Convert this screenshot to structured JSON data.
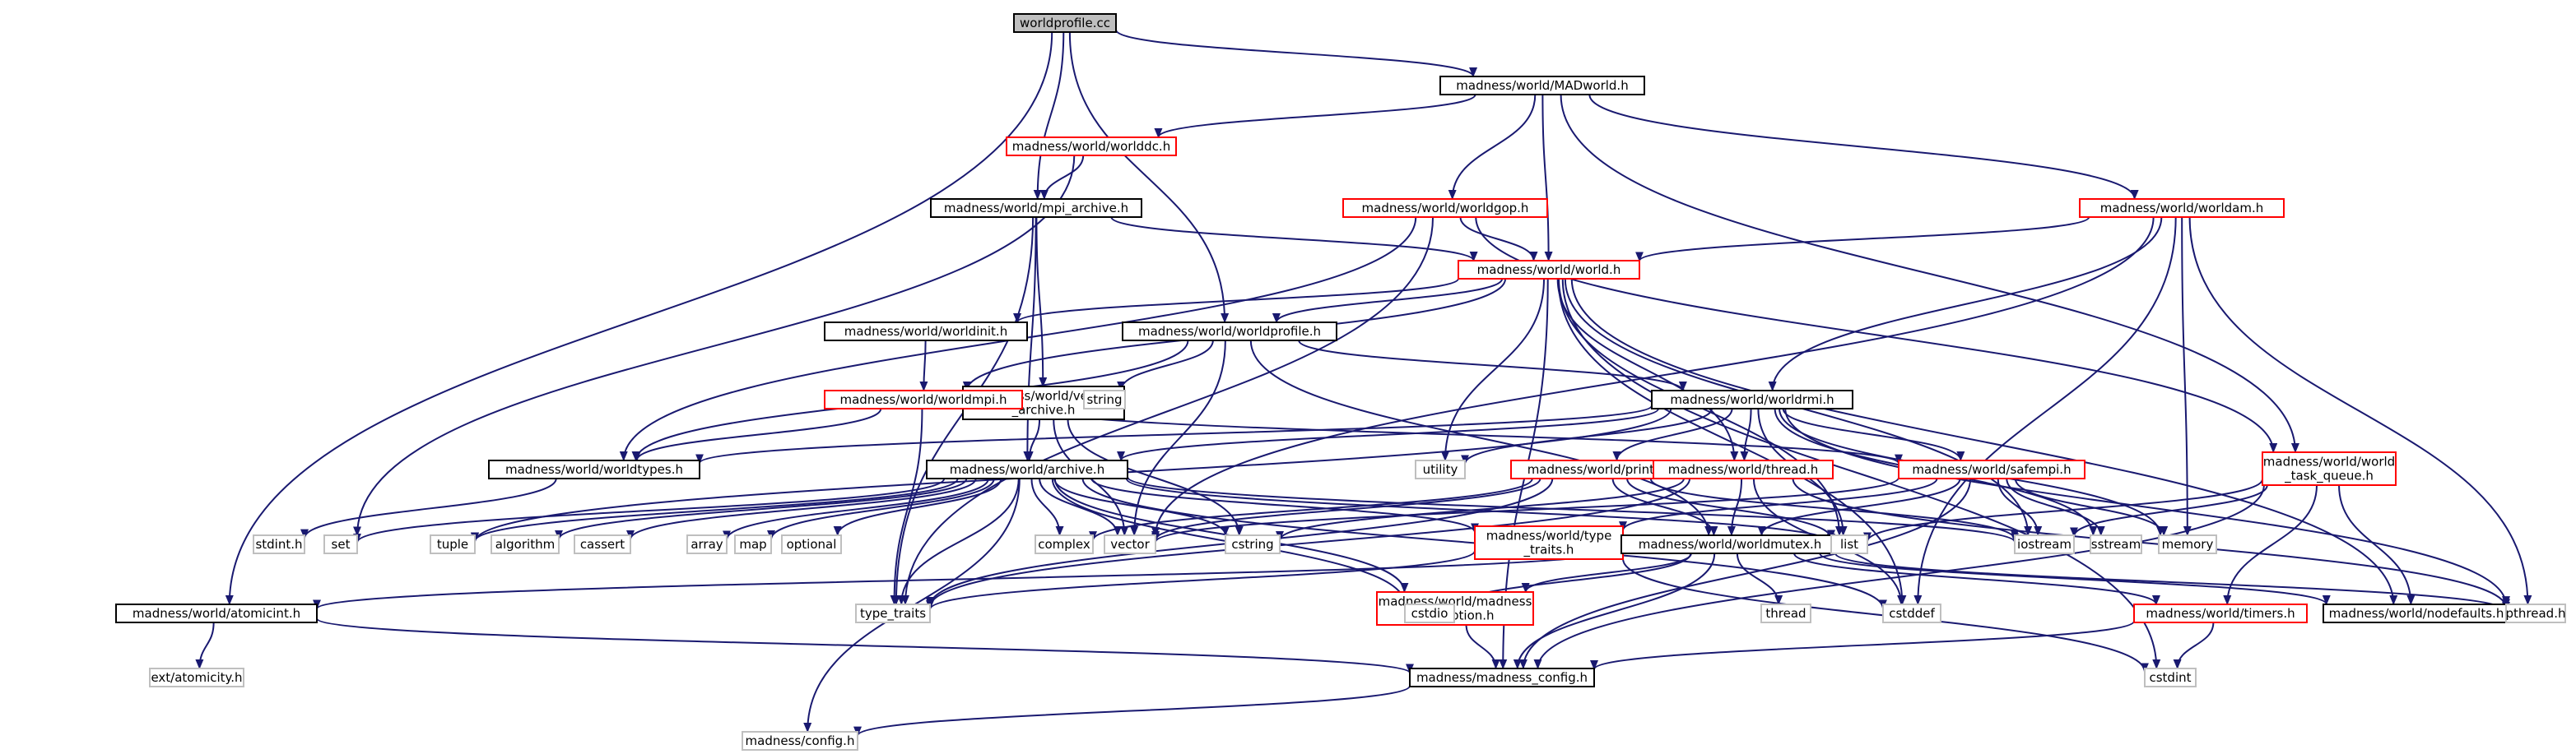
{
  "colors": {
    "edge": "#191970",
    "root_fill": "#bfbfbf",
    "node_border": "#000000",
    "linked_border": "#ff0000",
    "external_border": "#bfbfbf"
  },
  "diagram": {
    "nodes": [
      {
        "id": "root",
        "label": "worldprofile.cc",
        "kind": "root"
      },
      {
        "id": "madworld",
        "label": "madness/world/MADworld.h",
        "kind": "normal"
      },
      {
        "id": "worldddc",
        "label": "madness/world/worlddc.h",
        "kind": "red"
      },
      {
        "id": "mpiarch",
        "label": "madness/world/mpi_archive.h",
        "kind": "normal"
      },
      {
        "id": "worldgop",
        "label": "madness/world/worldgop.h",
        "kind": "red"
      },
      {
        "id": "worldam",
        "label": "madness/world/worldam.h",
        "kind": "red"
      },
      {
        "id": "world",
        "label": "madness/world/world.h",
        "kind": "red"
      },
      {
        "id": "worldinit",
        "label": "madness/world/worldinit.h",
        "kind": "normal"
      },
      {
        "id": "worldprofh",
        "label": "madness/world/worldprofile.h",
        "kind": "normal"
      },
      {
        "id": "vecarch",
        "label": [
          "madness/world/vector",
          "_archive.h"
        ],
        "kind": "normal"
      },
      {
        "id": "worldmpi",
        "label": "madness/world/worldmpi.h",
        "kind": "red"
      },
      {
        "id": "string",
        "label": "string",
        "kind": "gray"
      },
      {
        "id": "worldrmi",
        "label": "madness/world/worldrmi.h",
        "kind": "normal"
      },
      {
        "id": "worldtypes",
        "label": "madness/world/worldtypes.h",
        "kind": "normal"
      },
      {
        "id": "archive",
        "label": "madness/world/archive.h",
        "kind": "normal"
      },
      {
        "id": "utility",
        "label": "utility",
        "kind": "gray"
      },
      {
        "id": "print",
        "label": "madness/world/print.h",
        "kind": "red"
      },
      {
        "id": "thread",
        "label": "madness/world/thread.h",
        "kind": "red"
      },
      {
        "id": "safempi",
        "label": "madness/world/safempi.h",
        "kind": "red"
      },
      {
        "id": "taskq",
        "label": [
          "madness/world/world",
          "_task_queue.h"
        ],
        "kind": "red"
      },
      {
        "id": "stdint",
        "label": "stdint.h",
        "kind": "gray"
      },
      {
        "id": "set",
        "label": "set",
        "kind": "gray"
      },
      {
        "id": "tuple",
        "label": "tuple",
        "kind": "gray"
      },
      {
        "id": "algorithm",
        "label": "algorithm",
        "kind": "gray"
      },
      {
        "id": "cassert",
        "label": "cassert",
        "kind": "gray"
      },
      {
        "id": "array",
        "label": "array",
        "kind": "gray"
      },
      {
        "id": "map",
        "label": "map",
        "kind": "gray"
      },
      {
        "id": "optional",
        "label": "optional",
        "kind": "gray"
      },
      {
        "id": "complex",
        "label": "complex",
        "kind": "gray"
      },
      {
        "id": "vector",
        "label": "vector",
        "kind": "gray"
      },
      {
        "id": "cstring",
        "label": "cstring",
        "kind": "gray"
      },
      {
        "id": "typetraitsh",
        "label": [
          "madness/world/type",
          "_traits.h"
        ],
        "kind": "red"
      },
      {
        "id": "worldmutex",
        "label": "madness/world/worldmutex.h",
        "kind": "normal"
      },
      {
        "id": "list",
        "label": "list",
        "kind": "gray"
      },
      {
        "id": "iostream",
        "label": "iostream",
        "kind": "gray"
      },
      {
        "id": "sstream",
        "label": "sstream",
        "kind": "gray"
      },
      {
        "id": "memory",
        "label": "memory",
        "kind": "gray"
      },
      {
        "id": "atomicint",
        "label": "madness/world/atomicint.h",
        "kind": "normal"
      },
      {
        "id": "type_traits",
        "label": "type_traits",
        "kind": "gray"
      },
      {
        "id": "madexc",
        "label": [
          "madness/world/madness",
          "_exception.h"
        ],
        "kind": "red"
      },
      {
        "id": "cstdio",
        "label": "cstdio",
        "kind": "gray"
      },
      {
        "id": "threadstd",
        "label": "thread",
        "kind": "gray"
      },
      {
        "id": "cstddef",
        "label": "cstddef",
        "kind": "gray"
      },
      {
        "id": "timers",
        "label": "madness/world/timers.h",
        "kind": "red"
      },
      {
        "id": "nodefaults",
        "label": "madness/world/nodefaults.h",
        "kind": "normal"
      },
      {
        "id": "pthread",
        "label": "pthread.h",
        "kind": "gray"
      },
      {
        "id": "atomicity",
        "label": "ext/atomicity.h",
        "kind": "gray"
      },
      {
        "id": "madconfig",
        "label": "madness/madness_config.h",
        "kind": "normal"
      },
      {
        "id": "cstdint",
        "label": "cstdint",
        "kind": "gray"
      },
      {
        "id": "config",
        "label": "madness/config.h",
        "kind": "gray"
      }
    ],
    "edges": [
      [
        "root",
        "madworld"
      ],
      [
        "root",
        "mpiarch"
      ],
      [
        "root",
        "worldprofh"
      ],
      [
        "root",
        "atomicint"
      ],
      [
        "madworld",
        "worldddc"
      ],
      [
        "madworld",
        "worldgop"
      ],
      [
        "madworld",
        "world"
      ],
      [
        "madworld",
        "worldam"
      ],
      [
        "madworld",
        "taskq"
      ],
      [
        "worldddc",
        "mpiarch"
      ],
      [
        "worldddc",
        "set"
      ],
      [
        "mpiarch",
        "world"
      ],
      [
        "mpiarch",
        "vecarch"
      ],
      [
        "mpiarch",
        "archive"
      ],
      [
        "mpiarch",
        "type_traits"
      ],
      [
        "worldgop",
        "world"
      ],
      [
        "worldgop",
        "worldtypes"
      ],
      [
        "worldgop",
        "type_traits"
      ],
      [
        "worldgop",
        "taskq"
      ],
      [
        "worldam",
        "world"
      ],
      [
        "worldam",
        "worldrmi"
      ],
      [
        "worldam",
        "vector"
      ],
      [
        "worldam",
        "memory"
      ],
      [
        "worldam",
        "cstddef"
      ],
      [
        "worldam",
        "pthread"
      ],
      [
        "world",
        "worldinit"
      ],
      [
        "world",
        "worldprofh"
      ],
      [
        "world",
        "worldmpi"
      ],
      [
        "world",
        "utility"
      ],
      [
        "world",
        "thread"
      ],
      [
        "world",
        "list"
      ],
      [
        "world",
        "iostream"
      ],
      [
        "world",
        "cstdint"
      ],
      [
        "world",
        "madconfig"
      ],
      [
        "world",
        "nodefaults"
      ],
      [
        "world",
        "cstddef"
      ],
      [
        "worldinit",
        "worldmpi"
      ],
      [
        "worldprofh",
        "worldrmi"
      ],
      [
        "worldprofh",
        "string"
      ],
      [
        "worldprofh",
        "vector"
      ],
      [
        "worldprofh",
        "worldtypes"
      ],
      [
        "worldprofh",
        "worldmutex"
      ],
      [
        "vecarch",
        "archive"
      ],
      [
        "vecarch",
        "vector"
      ],
      [
        "vecarch",
        "cstring"
      ],
      [
        "worldmpi",
        "worldtypes"
      ],
      [
        "worldmpi",
        "safempi"
      ],
      [
        "worldmpi",
        "type_traits"
      ],
      [
        "worldrmi",
        "worldtypes"
      ],
      [
        "worldrmi",
        "archive"
      ],
      [
        "worldrmi",
        "utility"
      ],
      [
        "worldrmi",
        "print"
      ],
      [
        "worldrmi",
        "thread"
      ],
      [
        "worldrmi",
        "safempi"
      ],
      [
        "worldrmi",
        "list"
      ],
      [
        "worldrmi",
        "sstream"
      ],
      [
        "worldrmi",
        "memory"
      ],
      [
        "worldrmi",
        "pthread"
      ],
      [
        "worldrmi",
        "tuple"
      ],
      [
        "worldtypes",
        "stdint"
      ],
      [
        "archive",
        "set"
      ],
      [
        "archive",
        "tuple"
      ],
      [
        "archive",
        "algorithm"
      ],
      [
        "archive",
        "cassert"
      ],
      [
        "archive",
        "array"
      ],
      [
        "archive",
        "map"
      ],
      [
        "archive",
        "optional"
      ],
      [
        "archive",
        "complex"
      ],
      [
        "archive",
        "vector"
      ],
      [
        "archive",
        "cstring"
      ],
      [
        "archive",
        "typetraitsh"
      ],
      [
        "archive",
        "list"
      ],
      [
        "archive",
        "iostream"
      ],
      [
        "archive",
        "type_traits"
      ],
      [
        "archive",
        "madexc"
      ],
      [
        "archive",
        "cstdio"
      ],
      [
        "archive",
        "cstddef"
      ],
      [
        "archive",
        "config"
      ],
      [
        "print",
        "vector"
      ],
      [
        "print",
        "complex"
      ],
      [
        "print",
        "list"
      ],
      [
        "print",
        "iostream"
      ],
      [
        "print",
        "worldmutex"
      ],
      [
        "print",
        "type_traits"
      ],
      [
        "thread",
        "worldmutex"
      ],
      [
        "thread",
        "cstring"
      ],
      [
        "thread",
        "cstddef"
      ],
      [
        "thread",
        "type_traits"
      ],
      [
        "thread",
        "pthread"
      ],
      [
        "safempi",
        "worldmutex"
      ],
      [
        "safempi",
        "iostream"
      ],
      [
        "safempi",
        "sstream"
      ],
      [
        "safempi",
        "memory"
      ],
      [
        "safempi",
        "typetraitsh"
      ],
      [
        "safempi",
        "madconfig"
      ],
      [
        "safempi",
        "vector"
      ],
      [
        "taskq",
        "iostream"
      ],
      [
        "taskq",
        "list"
      ],
      [
        "taskq",
        "nodefaults"
      ],
      [
        "taskq",
        "timers"
      ],
      [
        "taskq",
        "madconfig"
      ],
      [
        "typetraitsh",
        "type_traits"
      ],
      [
        "typetraitsh",
        "cstdint"
      ],
      [
        "worldmutex",
        "atomicint"
      ],
      [
        "worldmutex",
        "madexc"
      ],
      [
        "worldmutex",
        "cstdio"
      ],
      [
        "worldmutex",
        "threadstd"
      ],
      [
        "worldmutex",
        "timers"
      ],
      [
        "worldmutex",
        "nodefaults"
      ],
      [
        "worldmutex",
        "madconfig"
      ],
      [
        "worldmutex",
        "pthread"
      ],
      [
        "atomicint",
        "atomicity"
      ],
      [
        "atomicint",
        "madconfig"
      ],
      [
        "madexc",
        "madconfig"
      ],
      [
        "timers",
        "cstdint"
      ],
      [
        "timers",
        "madconfig"
      ],
      [
        "madconfig",
        "config"
      ]
    ]
  }
}
